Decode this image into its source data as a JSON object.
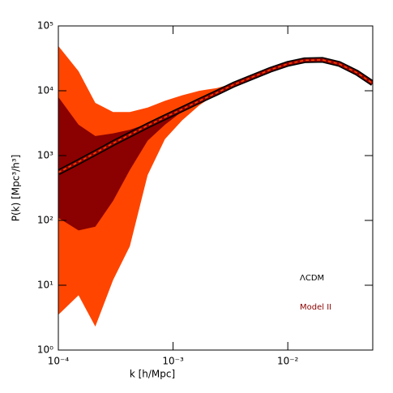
{
  "chart_data": {
    "type": "line",
    "x_label": "k [h/Mpc]",
    "y_label": "P(k) [Mpc³/h³]",
    "x": [
      0.0001,
      0.00015,
      0.00021,
      0.0003,
      0.00042,
      0.0006,
      0.00085,
      0.0012,
      0.0017,
      0.0024,
      0.0034,
      0.005,
      0.007,
      0.01,
      0.014,
      0.02,
      0.028,
      0.04,
      0.055
    ],
    "bands": [
      {
        "color": "#ff4500",
        "upper": [
          49000,
          20000,
          6500,
          4700,
          4700,
          5500,
          7000,
          8500,
          10000,
          11000,
          13000,
          17000,
          21500,
          26500,
          30000,
          30500,
          26500,
          19300,
          13200
        ],
        "lower": [
          3.5,
          7,
          2.3,
          12,
          40,
          500,
          1800,
          3500,
          6000,
          9000,
          12000,
          16000,
          20500,
          25500,
          29000,
          29500,
          25500,
          18700,
          12800
        ]
      },
      {
        "color": "#8b0000",
        "upper": [
          8000,
          3000,
          2000,
          2200,
          2500,
          3100,
          4000,
          5300,
          7100,
          9400,
          12600,
          16600,
          21100,
          26100,
          29600,
          30100,
          26100,
          19100,
          13100
        ],
        "lower": [
          110,
          70,
          80,
          200,
          600,
          1700,
          3000,
          4800,
          6900,
          9200,
          12400,
          16400,
          20900,
          25900,
          29400,
          29900,
          25900,
          18900,
          12900
        ]
      }
    ],
    "series": [
      {
        "name": "ΛCDM",
        "color": "#000000",
        "values": [
          550,
          800,
          1100,
          1550,
          2100,
          2900,
          3900,
          5200,
          7000,
          9300,
          12500,
          16500,
          21000,
          26000,
          29500,
          30000,
          26000,
          19000,
          13000
        ]
      },
      {
        "name": "Model II",
        "color": "#8b0000",
        "line_color": "#ff4500",
        "values": [
          550,
          800,
          1100,
          1550,
          2100,
          2900,
          3900,
          5200,
          7000,
          9300,
          12500,
          16500,
          21000,
          26000,
          29500,
          30000,
          26000,
          19000,
          13000
        ]
      }
    ],
    "xlog": true,
    "ylog": true,
    "xlim": [
      0.0001,
      0.055
    ],
    "ylim": [
      1,
      100000
    ],
    "xticks": [
      {
        "value": 0.0001,
        "label": "10⁻⁴"
      },
      {
        "value": 0.001,
        "label": "10⁻³"
      },
      {
        "value": 0.01,
        "label": "10⁻²"
      }
    ],
    "yticks": [
      {
        "value": 1,
        "label": "10⁰"
      },
      {
        "value": 10,
        "label": "10¹"
      },
      {
        "value": 100,
        "label": "10²"
      },
      {
        "value": 1000,
        "label": "10³"
      },
      {
        "value": 10000,
        "label": "10⁴"
      },
      {
        "value": 100000,
        "label": "10⁵"
      }
    ]
  }
}
